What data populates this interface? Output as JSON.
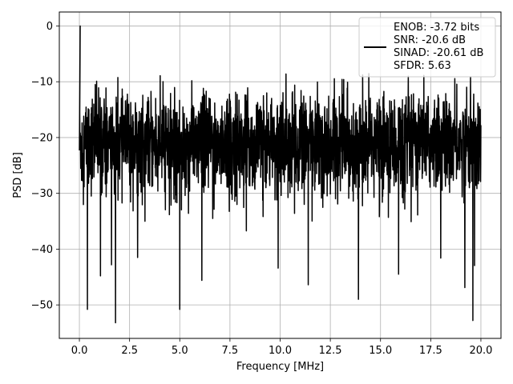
{
  "chart_data": {
    "type": "line",
    "title": "",
    "xlabel": "Frequency [MHz]",
    "ylabel": "PSD [dB]",
    "xlim": [
      -1.0,
      21.0
    ],
    "ylim": [
      -56.0,
      2.5
    ],
    "xticks": [
      0.0,
      2.5,
      5.0,
      7.5,
      10.0,
      12.5,
      15.0,
      17.5,
      20.0
    ],
    "xtick_labels": [
      "0.0",
      "2.5",
      "5.0",
      "7.5",
      "10.0",
      "12.5",
      "15.0",
      "17.5",
      "20.0"
    ],
    "yticks": [
      0,
      -10,
      -20,
      -30,
      -40,
      -50
    ],
    "ytick_labels": [
      "0",
      "−10",
      "−20",
      "−30",
      "−40",
      "−50"
    ],
    "grid": true,
    "legend_position": "top-right",
    "legend": {
      "lines": [
        "ENOB: -3.72 bits",
        "SNR: -20.6 dB",
        "SINAD: -20.61 dB",
        "SFDR: 5.63"
      ]
    },
    "series": [
      {
        "color": "#000000",
        "noise_model": {
          "x_start": 0.0,
          "x_end": 20.0,
          "samples": 2400,
          "peak": {
            "x": 0.04,
            "y": 0.0
          },
          "floor_mean_y": -21.0,
          "floor_top_y": -8.5,
          "floor_bottom_y": -33.0
        },
        "dips": [
          {
            "x": 0.4,
            "y": -50.8
          },
          {
            "x": 1.8,
            "y": -53.2
          },
          {
            "x": 1.05,
            "y": -44.8
          },
          {
            "x": 1.6,
            "y": -42.8
          },
          {
            "x": 2.9,
            "y": -41.5
          },
          {
            "x": 5.0,
            "y": -50.8
          },
          {
            "x": 6.1,
            "y": -45.6
          },
          {
            "x": 9.9,
            "y": -43.4
          },
          {
            "x": 11.4,
            "y": -46.4
          },
          {
            "x": 13.9,
            "y": -49.0
          },
          {
            "x": 15.9,
            "y": -44.5
          },
          {
            "x": 18.0,
            "y": -41.6
          },
          {
            "x": 19.2,
            "y": -46.9
          },
          {
            "x": 19.6,
            "y": -52.8
          }
        ]
      }
    ]
  }
}
